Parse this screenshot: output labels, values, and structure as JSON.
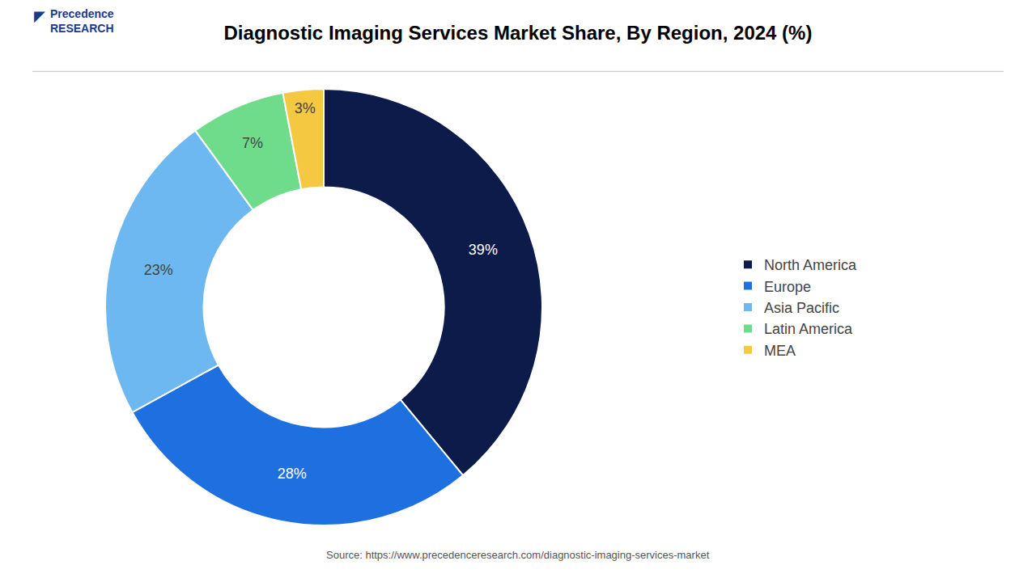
{
  "chart_data": {
    "type": "donut",
    "title": "Diagnostic Imaging Services Market Share, By Region, 2024 (%)",
    "categories": [
      "North America",
      "Europe",
      "Asia Pacific",
      "Latin America",
      "MEA"
    ],
    "values": [
      39,
      28,
      23,
      7,
      3
    ],
    "value_labels": [
      "39%",
      "28%",
      "23%",
      "7%",
      "3%"
    ],
    "colors": [
      "#0d1b4b",
      "#1e6fe0",
      "#6db8f0",
      "#6fdc8c",
      "#f5c842"
    ],
    "data_labels": true,
    "legend": "right",
    "annotations": [
      "Source: https://www.precedenceresearch.com/diagnostic-imaging-services-market",
      "Precedence\nRESEARCH",
      "◤"
    ]
  }
}
